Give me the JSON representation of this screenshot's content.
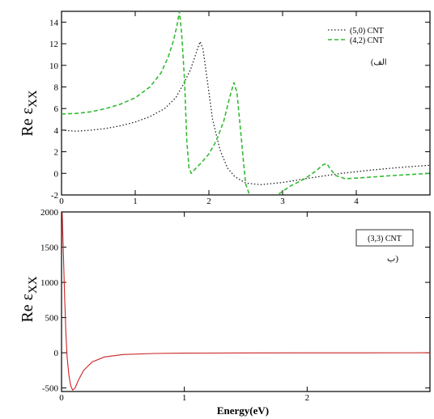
{
  "chart_data": [
    {
      "type": "line",
      "ylabel_prefix": "Re ε",
      "ylabel_sub": "XX",
      "xlim": [
        0,
        5
      ],
      "ylim": [
        -2,
        15
      ],
      "x_ticks": [
        0,
        1,
        2,
        3,
        4
      ],
      "y_ticks": [
        -2,
        0,
        2,
        4,
        6,
        8,
        10,
        12,
        14
      ],
      "legend_position": "top-right",
      "annotation": "(الف",
      "series": [
        {
          "name": "(5,0) CNT",
          "color": "#222222",
          "style": "dotted",
          "points": [
            [
              0,
              4.0
            ],
            [
              0.2,
              3.9
            ],
            [
              0.4,
              4.0
            ],
            [
              0.6,
              4.15
            ],
            [
              0.8,
              4.4
            ],
            [
              1.0,
              4.75
            ],
            [
              1.2,
              5.25
            ],
            [
              1.4,
              6.0
            ],
            [
              1.55,
              7.0
            ],
            [
              1.65,
              8.2
            ],
            [
              1.75,
              9.6
            ],
            [
              1.83,
              11.2
            ],
            [
              1.88,
              12.2
            ],
            [
              1.92,
              11.5
            ],
            [
              1.98,
              8.5
            ],
            [
              2.05,
              5.0
            ],
            [
              2.15,
              2.2
            ],
            [
              2.25,
              0.5
            ],
            [
              2.35,
              -0.3
            ],
            [
              2.5,
              -0.9
            ],
            [
              2.7,
              -1.05
            ],
            [
              3.0,
              -0.85
            ],
            [
              3.4,
              -0.4
            ],
            [
              3.8,
              0.0
            ],
            [
              4.2,
              0.3
            ],
            [
              4.6,
              0.55
            ],
            [
              5.0,
              0.75
            ]
          ]
        },
        {
          "name": "(4,2) CNT",
          "color": "#33bb33",
          "style": "dashed",
          "points": [
            [
              0,
              5.5
            ],
            [
              0.2,
              5.55
            ],
            [
              0.4,
              5.7
            ],
            [
              0.6,
              6.0
            ],
            [
              0.8,
              6.4
            ],
            [
              1.0,
              7.0
            ],
            [
              1.2,
              8.0
            ],
            [
              1.35,
              9.3
            ],
            [
              1.45,
              10.8
            ],
            [
              1.52,
              12.3
            ],
            [
              1.57,
              13.8
            ],
            [
              1.6,
              15.0
            ],
            [
              1.63,
              13.0
            ],
            [
              1.67,
              8.5
            ],
            [
              1.7,
              3.0
            ],
            [
              1.73,
              0.5
            ],
            [
              1.76,
              0.0
            ],
            [
              1.8,
              0.3
            ],
            [
              1.9,
              1.0
            ],
            [
              2.0,
              1.8
            ],
            [
              2.1,
              3.0
            ],
            [
              2.2,
              4.8
            ],
            [
              2.28,
              7.0
            ],
            [
              2.34,
              8.4
            ],
            [
              2.38,
              7.5
            ],
            [
              2.43,
              4.0
            ],
            [
              2.47,
              1.0
            ],
            [
              2.5,
              -1.0
            ],
            [
              2.55,
              -2.0
            ]
          ]
        },
        {
          "color": "#33bb33",
          "style": "dashed",
          "points": [
            [
              2.95,
              -1.9
            ],
            [
              3.1,
              -1.2
            ],
            [
              3.3,
              -0.5
            ],
            [
              3.45,
              0.2
            ],
            [
              3.55,
              0.8
            ],
            [
              3.6,
              0.9
            ],
            [
              3.65,
              0.4
            ],
            [
              3.72,
              -0.2
            ],
            [
              3.85,
              -0.5
            ],
            [
              4.1,
              -0.4
            ],
            [
              4.5,
              -0.2
            ],
            [
              5.0,
              0.0
            ]
          ]
        }
      ]
    },
    {
      "type": "line",
      "xlabel": "Energy(eV)",
      "ylabel_prefix": "Re ε",
      "ylabel_sub": "XX",
      "xlim": [
        0,
        3
      ],
      "ylim": [
        -550,
        2000
      ],
      "x_ticks": [
        0,
        1,
        2
      ],
      "y_ticks": [
        -500,
        0,
        500,
        1000,
        1500,
        2000
      ],
      "legend_position": "top-right",
      "annotation": "ب)",
      "series": [
        {
          "name": "(3,3) CNT",
          "color": "#cc2222",
          "style": "solid",
          "points": [
            [
              0.005,
              1990
            ],
            [
              0.015,
              1400
            ],
            [
              0.025,
              800
            ],
            [
              0.035,
              300
            ],
            [
              0.045,
              -50
            ],
            [
              0.06,
              -320
            ],
            [
              0.075,
              -470
            ],
            [
              0.09,
              -530
            ],
            [
              0.11,
              -500
            ],
            [
              0.14,
              -380
            ],
            [
              0.18,
              -250
            ],
            [
              0.25,
              -130
            ],
            [
              0.35,
              -60
            ],
            [
              0.5,
              -25
            ],
            [
              0.75,
              -10
            ],
            [
              1.0,
              -5
            ],
            [
              1.5,
              -2
            ],
            [
              2.0,
              -1
            ],
            [
              2.5,
              -0.5
            ],
            [
              3.0,
              0
            ]
          ]
        }
      ]
    }
  ]
}
